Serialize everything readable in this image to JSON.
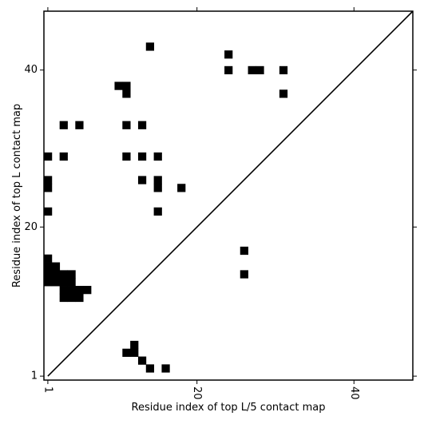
{
  "chart_data": {
    "type": "heatmap",
    "title": "",
    "xlabel": "Residue index of top L/5 contact map",
    "ylabel": "Residue index of top L contact map",
    "xlim": [
      0.5,
      47.5
    ],
    "ylim": [
      0.5,
      47.5
    ],
    "x_ticks": [
      "1",
      "20",
      "40"
    ],
    "y_ticks": [
      "1",
      "20",
      "40"
    ],
    "x_tick_values": [
      1,
      20,
      40
    ],
    "y_tick_values": [
      1,
      20,
      40
    ],
    "diagonal": true,
    "cell_color": "#000000",
    "cells": [
      [
        14,
        43
      ],
      [
        24,
        42
      ],
      [
        24,
        40
      ],
      [
        27,
        40
      ],
      [
        28,
        40
      ],
      [
        31,
        40
      ],
      [
        10,
        38
      ],
      [
        11,
        38
      ],
      [
        11,
        37
      ],
      [
        31,
        37
      ],
      [
        3,
        33
      ],
      [
        5,
        33
      ],
      [
        11,
        33
      ],
      [
        13,
        33
      ],
      [
        1,
        29
      ],
      [
        3,
        29
      ],
      [
        11,
        29
      ],
      [
        13,
        29
      ],
      [
        15,
        29
      ],
      [
        1,
        26
      ],
      [
        1,
        25
      ],
      [
        13,
        26
      ],
      [
        15,
        26
      ],
      [
        15,
        25
      ],
      [
        18,
        25
      ],
      [
        1,
        22
      ],
      [
        15,
        22
      ],
      [
        26,
        17
      ],
      [
        26,
        14
      ],
      [
        1,
        16
      ],
      [
        1,
        15
      ],
      [
        2,
        15
      ],
      [
        1,
        14
      ],
      [
        2,
        14
      ],
      [
        3,
        14
      ],
      [
        4,
        14
      ],
      [
        1,
        13
      ],
      [
        2,
        13
      ],
      [
        3,
        13
      ],
      [
        4,
        13
      ],
      [
        3,
        12
      ],
      [
        4,
        12
      ],
      [
        5,
        12
      ],
      [
        6,
        12
      ],
      [
        3,
        11
      ],
      [
        4,
        11
      ],
      [
        5,
        11
      ],
      [
        12,
        5
      ],
      [
        11,
        4
      ],
      [
        12,
        4
      ],
      [
        13,
        3
      ],
      [
        14,
        2
      ],
      [
        16,
        2
      ]
    ]
  }
}
